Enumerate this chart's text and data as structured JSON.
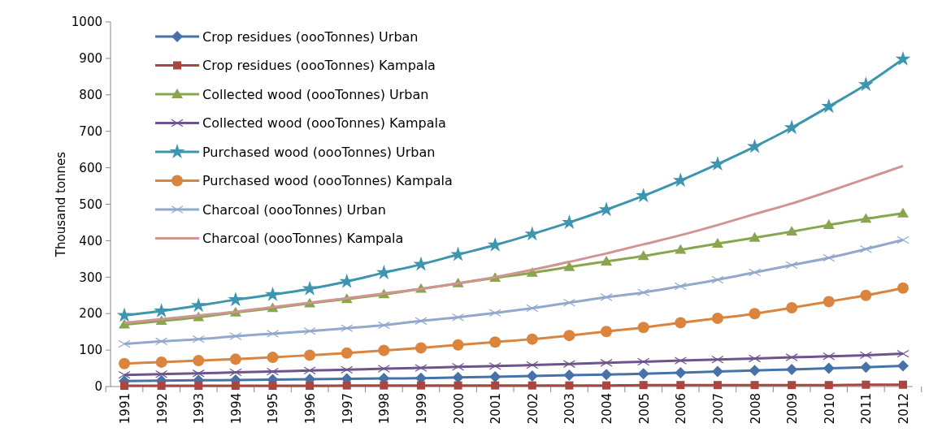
{
  "chart_data": {
    "type": "line",
    "ylabel": "Thousand tonnes",
    "categories": [
      "1991",
      "1992",
      "1993",
      "1994",
      "1995",
      "1996",
      "1997",
      "1998",
      "1999",
      "2000",
      "2001",
      "2002",
      "2003",
      "2004",
      "2005",
      "2006",
      "2007",
      "2008",
      "2009",
      "2010",
      "2011",
      "2012"
    ],
    "ylim": [
      0,
      1000
    ],
    "yticks": [
      0,
      100,
      200,
      300,
      400,
      500,
      600,
      700,
      800,
      900,
      1000
    ],
    "grid": false,
    "legend": "top left",
    "series": [
      {
        "name": "Crop residues (oooTonnes) Urban",
        "color": "#4672a8",
        "marker": "diamond",
        "values": [
          15,
          16,
          17,
          18,
          19,
          20,
          21,
          22,
          23,
          25,
          27,
          29,
          31,
          33,
          35,
          38,
          41,
          44,
          47,
          50,
          53,
          57
        ]
      },
      {
        "name": "Crop residues (oooTonnes) Kampala",
        "color": "#a84642",
        "marker": "square",
        "values": [
          2,
          2,
          2,
          2,
          2,
          2,
          3,
          3,
          3,
          3,
          3,
          3,
          3,
          3,
          4,
          4,
          4,
          4,
          4,
          4,
          5,
          5
        ]
      },
      {
        "name": "Collected wood (oooTonnes) Urban",
        "color": "#89a54e",
        "marker": "triangle",
        "values": [
          170,
          180,
          190,
          203,
          215,
          228,
          240,
          253,
          268,
          283,
          298,
          312,
          328,
          343,
          358,
          375,
          392,
          408,
          425,
          443,
          460,
          475
        ]
      },
      {
        "name": "Collected wood (oooTonnes) Kampala",
        "color": "#6e548d",
        "marker": "cross",
        "values": [
          32,
          34,
          36,
          39,
          41,
          44,
          46,
          49,
          51,
          54,
          56,
          59,
          62,
          65,
          68,
          71,
          74,
          77,
          80,
          83,
          86,
          90
        ]
      },
      {
        "name": "Purchased wood (oooTonnes) Urban",
        "color": "#3d96ae",
        "marker": "star",
        "values": [
          195,
          207,
          222,
          238,
          252,
          268,
          288,
          312,
          335,
          362,
          388,
          418,
          450,
          485,
          523,
          565,
          610,
          658,
          710,
          768,
          828,
          898
        ]
      },
      {
        "name": "Purchased wood (oooTonnes) Kampala",
        "color": "#db843d",
        "marker": "circle",
        "values": [
          63,
          67,
          71,
          75,
          80,
          86,
          92,
          99,
          106,
          114,
          122,
          130,
          140,
          151,
          162,
          175,
          187,
          200,
          216,
          233,
          250,
          270
        ]
      },
      {
        "name": "Charcoal (oooTonnes) Urban",
        "color": "#92a8cd",
        "marker": "cross",
        "values": [
          117,
          124,
          130,
          138,
          145,
          152,
          160,
          168,
          180,
          190,
          202,
          215,
          230,
          245,
          258,
          275,
          293,
          313,
          333,
          353,
          377,
          402
        ]
      },
      {
        "name": "Charcoal (oooTonnes) Kampala",
        "color": "#d09593",
        "marker": "none",
        "values": [
          175,
          185,
          195,
          205,
          218,
          230,
          242,
          255,
          268,
          283,
          300,
          320,
          342,
          365,
          390,
          415,
          443,
          473,
          502,
          535,
          570,
          605
        ]
      }
    ]
  }
}
